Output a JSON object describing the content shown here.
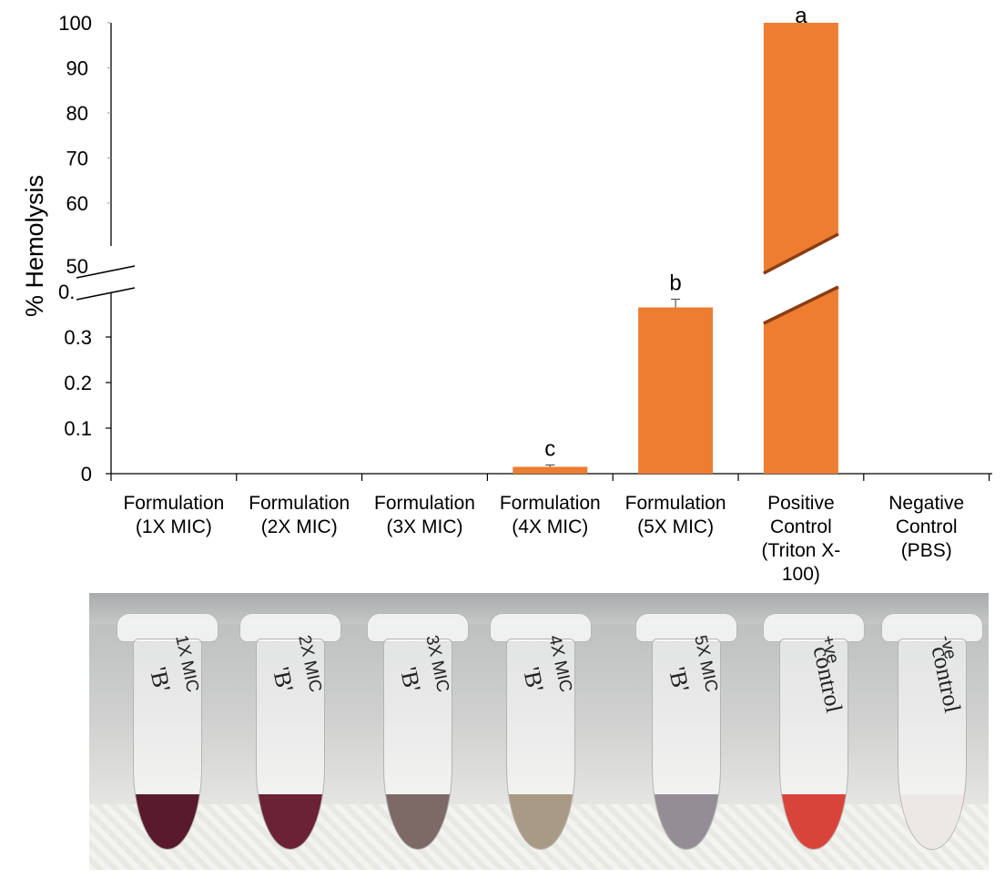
{
  "chart_data": {
    "type": "bar",
    "ylabel": "% Hemolysis",
    "categories": [
      "Formulation (1X MIC)",
      "Formulation (2X MIC)",
      "Formulation (3X MIC)",
      "Formulation (4X MIC)",
      "Formulation (5X MIC)",
      "Positive Control (Triton X-100)",
      "Negative Control (PBS)"
    ],
    "category_lines": [
      [
        "Formulation",
        "(1X MIC)"
      ],
      [
        "Formulation",
        "(2X MIC)"
      ],
      [
        "Formulation",
        "(3X MIC)"
      ],
      [
        "Formulation",
        "(4X MIC)"
      ],
      [
        "Formulation",
        "(5X MIC)"
      ],
      [
        "Positive",
        "Control",
        "(Triton X-",
        "100)"
      ],
      [
        "Negative",
        "Control",
        "(PBS)"
      ]
    ],
    "values": [
      0,
      0,
      0,
      0.015,
      0.365,
      100,
      0
    ],
    "errors": [
      0,
      0,
      0,
      0.004,
      0.018,
      0,
      0
    ],
    "significance": [
      "",
      "",
      "",
      "c",
      "b",
      "a",
      ""
    ],
    "axis_break": {
      "lower_range": [
        0,
        0.4
      ],
      "upper_range": [
        50,
        100
      ]
    },
    "lower_ticks": [
      "0",
      "0.1",
      "0.2",
      "0.3"
    ],
    "break_tick_label": "0.",
    "upper_ticks": [
      "50",
      "60",
      "70",
      "80",
      "90",
      "100"
    ],
    "bar_color": "#ed7d31",
    "grid": false
  },
  "photo": {
    "tube_labels": [
      [
        "1X MIC",
        "'B'"
      ],
      [
        "2X MIC",
        "'B'"
      ],
      [
        "3X MIC",
        "'B'"
      ],
      [
        "4X MIC",
        "'B'"
      ],
      [
        "5X MIC",
        "'B'"
      ],
      [
        "+ve",
        "control"
      ],
      [
        "-ve",
        "control"
      ]
    ],
    "liquid_colors": [
      "#5a1a2e",
      "#6b2235",
      "#7d6a66",
      "#a99a86",
      "#948d95",
      "#d9443a",
      "#ece8e6"
    ]
  }
}
